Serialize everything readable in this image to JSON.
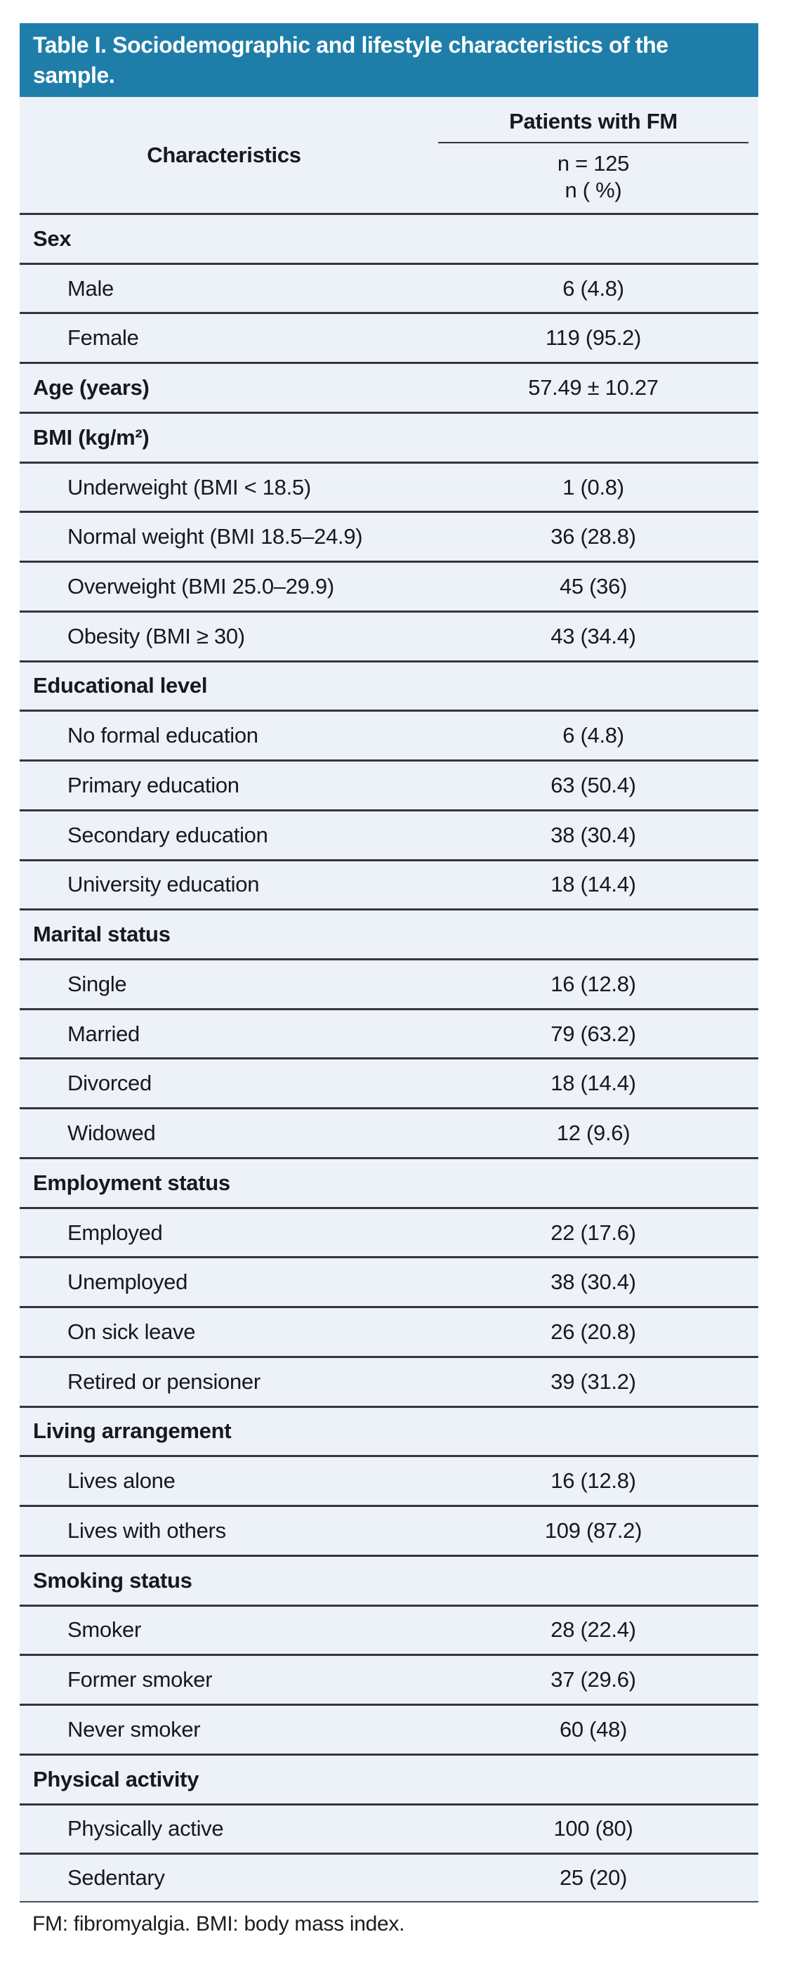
{
  "colors": {
    "title_bar_bg": "#1e7ea9",
    "title_text": "#ffffff",
    "table_bg": "#edf1f8",
    "divider": "#33373d",
    "body_text": "#17191c"
  },
  "table": {
    "title": "Table I. Sociodemographic and lifestyle characteristics of the sample.",
    "col_header_left": "Characteristics",
    "col_header_right": "Patients with FM",
    "col_subheader_line1": "n = 125",
    "col_subheader_line2": "n ( %)",
    "rows": [
      {
        "label": "Sex",
        "value": "",
        "type": "section"
      },
      {
        "label": "Male",
        "value": "6 (4.8)",
        "type": "data"
      },
      {
        "label": "Female",
        "value": "119 (95.2)",
        "type": "data"
      },
      {
        "label": "Age (years)",
        "value": "57.49 ± 10.27",
        "type": "section"
      },
      {
        "label": "BMI (kg/m²)",
        "value": "",
        "type": "section"
      },
      {
        "label": "Underweight (BMI < 18.5)",
        "value": "1 (0.8)",
        "type": "data"
      },
      {
        "label": "Normal weight (BMI 18.5–24.9)",
        "value": "36 (28.8)",
        "type": "data"
      },
      {
        "label": "Overweight (BMI 25.0–29.9)",
        "value": "45 (36)",
        "type": "data"
      },
      {
        "label": "Obesity (BMI ≥ 30)",
        "value": "43 (34.4)",
        "type": "data"
      },
      {
        "label": "Educational level",
        "value": "",
        "type": "section"
      },
      {
        "label": "No formal education",
        "value": "6 (4.8)",
        "type": "data"
      },
      {
        "label": "Primary education",
        "value": "63 (50.4)",
        "type": "data"
      },
      {
        "label": "Secondary education",
        "value": "38 (30.4)",
        "type": "data"
      },
      {
        "label": "University education",
        "value": "18 (14.4)",
        "type": "data"
      },
      {
        "label": "Marital status",
        "value": "",
        "type": "section"
      },
      {
        "label": "Single",
        "value": "16 (12.8)",
        "type": "data"
      },
      {
        "label": "Married",
        "value": "79 (63.2)",
        "type": "data"
      },
      {
        "label": "Divorced",
        "value": "18 (14.4)",
        "type": "data"
      },
      {
        "label": "Widowed",
        "value": "12 (9.6)",
        "type": "data"
      },
      {
        "label": "Employment status",
        "value": "",
        "type": "section"
      },
      {
        "label": "Employed",
        "value": "22 (17.6)",
        "type": "data"
      },
      {
        "label": "Unemployed",
        "value": "38 (30.4)",
        "type": "data"
      },
      {
        "label": "On sick leave",
        "value": "26 (20.8)",
        "type": "data"
      },
      {
        "label": "Retired or pensioner",
        "value": "39 (31.2)",
        "type": "data"
      },
      {
        "label": "Living arrangement",
        "value": "",
        "type": "section"
      },
      {
        "label": "Lives alone",
        "value": "16 (12.8)",
        "type": "data"
      },
      {
        "label": "Lives with others",
        "value": "109 (87.2)",
        "type": "data"
      },
      {
        "label": "Smoking status",
        "value": "",
        "type": "section"
      },
      {
        "label": "Smoker",
        "value": "28 (22.4)",
        "type": "data"
      },
      {
        "label": "Former smoker",
        "value": "37 (29.6)",
        "type": "data"
      },
      {
        "label": "Never smoker",
        "value": "60 (48)",
        "type": "data"
      },
      {
        "label": "Physical activity",
        "value": "",
        "type": "section"
      },
      {
        "label": "Physically active",
        "value": "100 (80)",
        "type": "data"
      },
      {
        "label": "Sedentary",
        "value": "25 (20)",
        "type": "data"
      }
    ],
    "footnote": "FM: fibromyalgia. BMI: body mass index."
  }
}
